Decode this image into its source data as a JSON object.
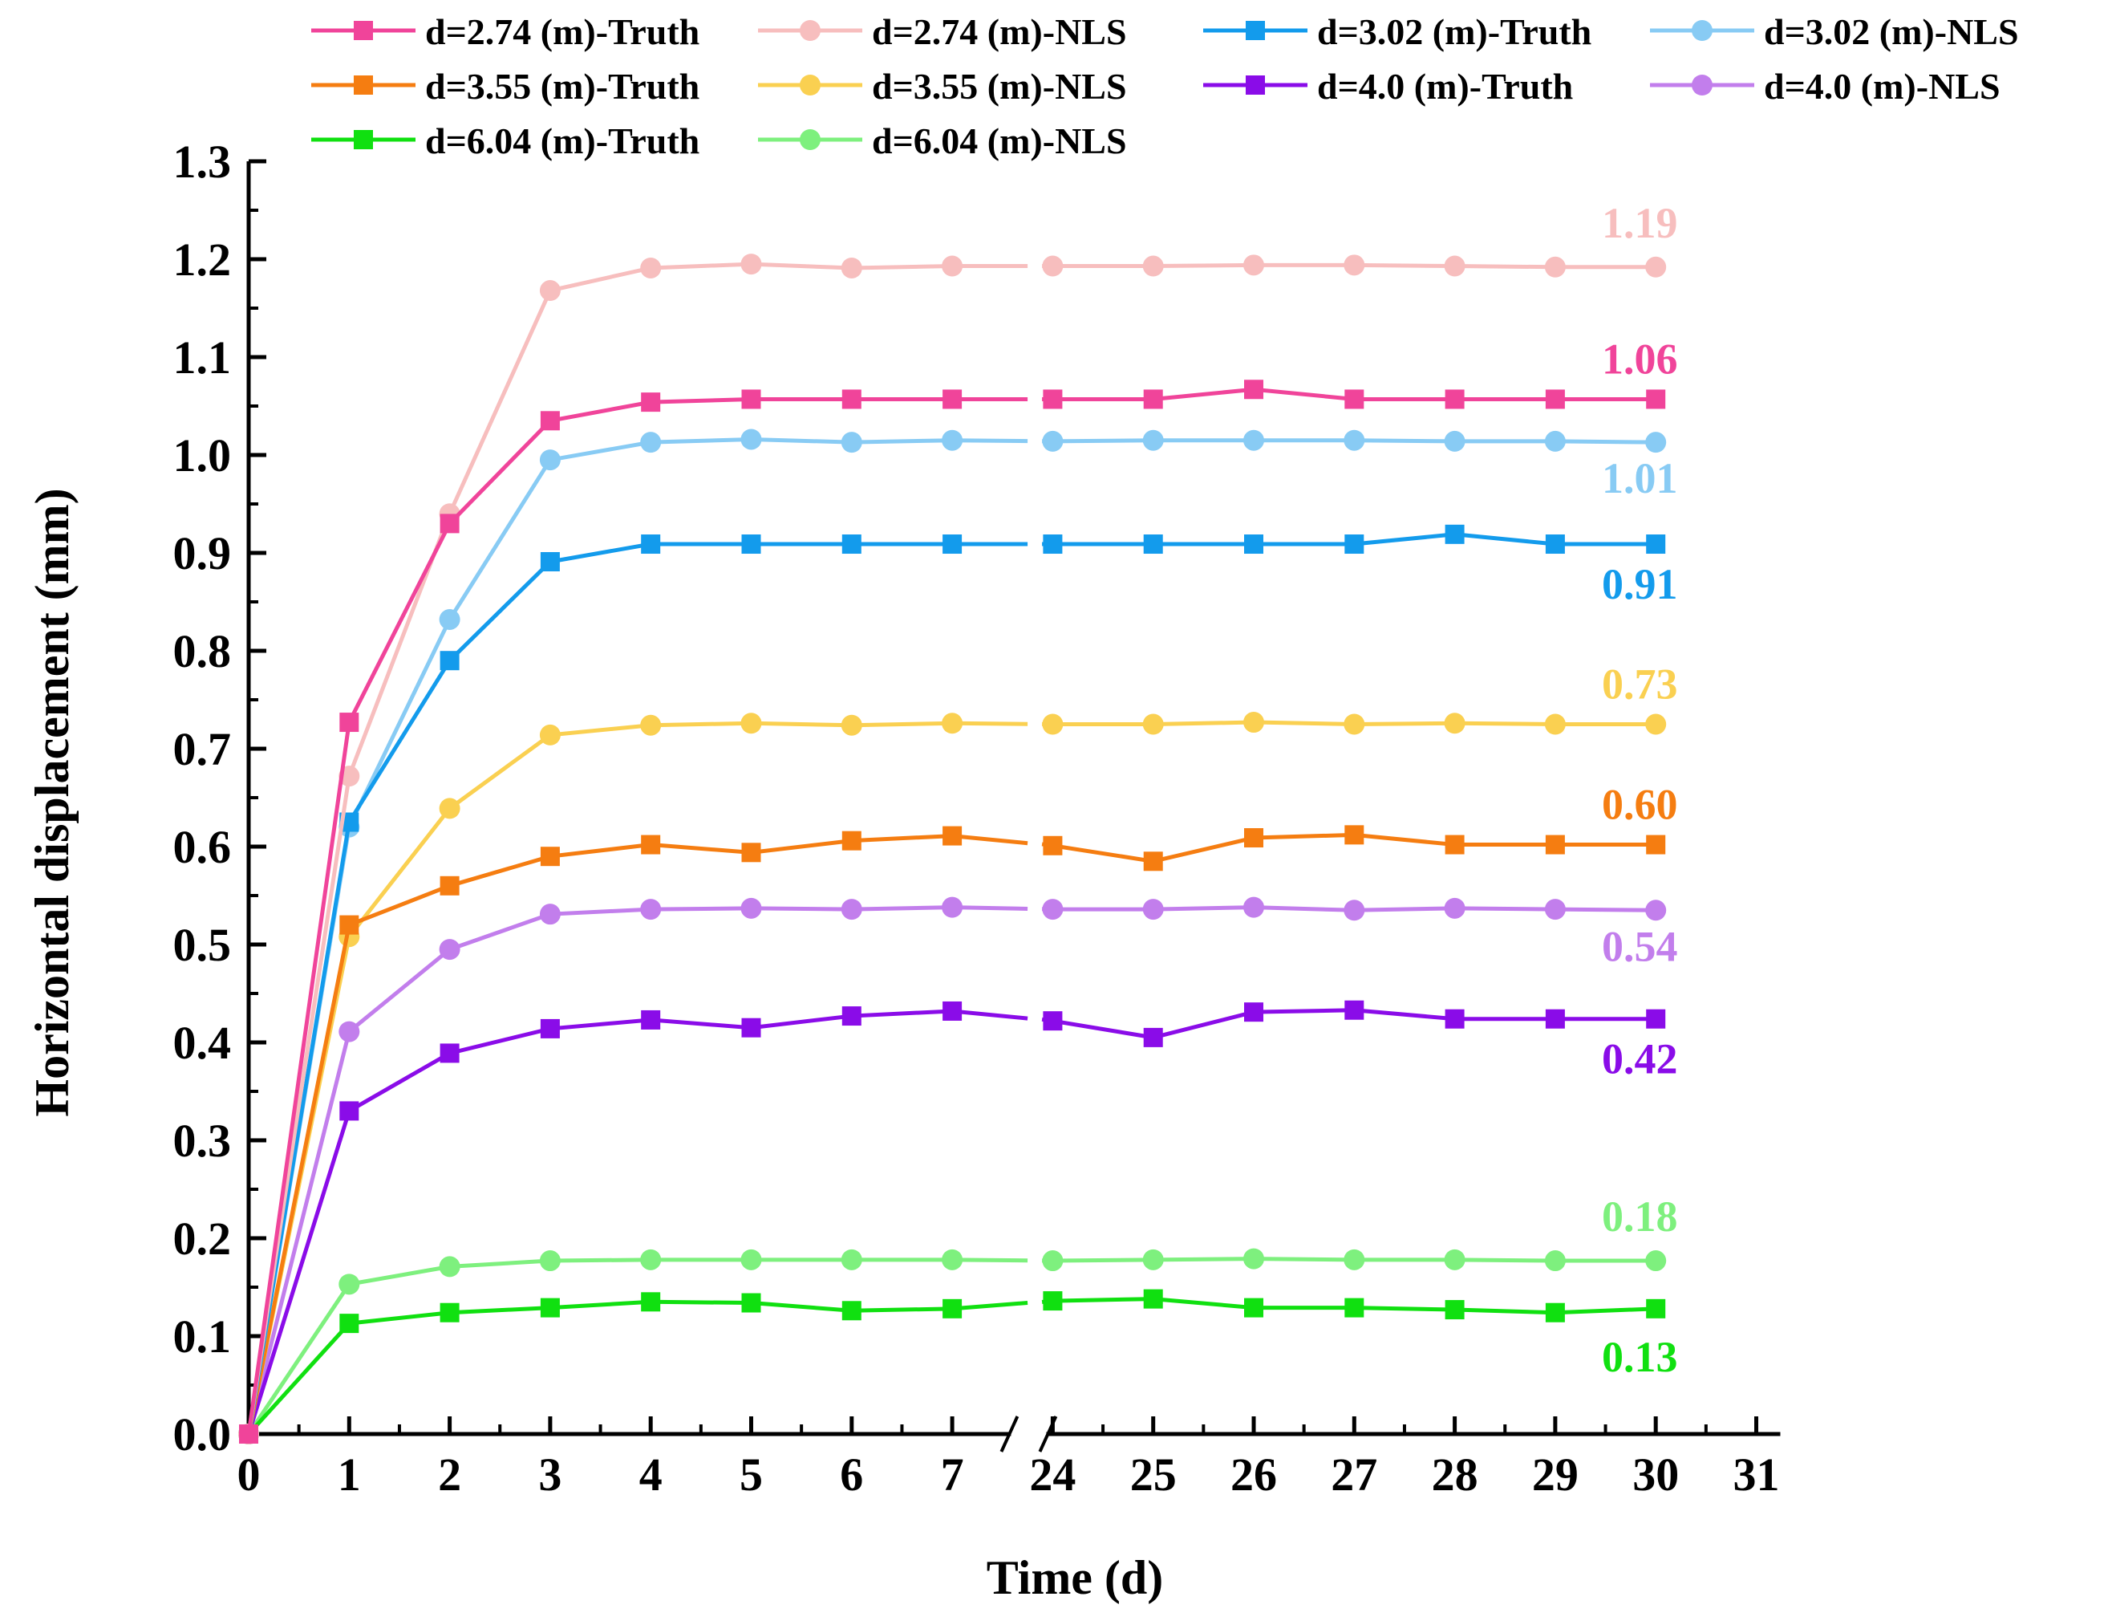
{
  "chart_data": {
    "type": "line",
    "title": "",
    "xlabel": "Time (d)",
    "ylabel": "Horizontal displacement (mm)",
    "ylim": [
      0.0,
      1.3
    ],
    "y_ticks": [
      "0.0",
      "0.1",
      "0.2",
      "0.3",
      "0.4",
      "0.5",
      "0.6",
      "0.7",
      "0.8",
      "0.9",
      "1.0",
      "1.1",
      "1.2",
      "1.3"
    ],
    "x_ticks": [
      "0",
      "1",
      "2",
      "3",
      "4",
      "5",
      "6",
      "7",
      "24",
      "25",
      "26",
      "27",
      "28",
      "29",
      "30",
      "31"
    ],
    "x_break": "between 7 and 24",
    "grid": false,
    "legend_position": "top",
    "series": [
      {
        "name": "d=2.74 (m)-Truth",
        "marker": "square",
        "color": "#F0449A",
        "values": [
          0.0,
          0.727,
          0.93,
          1.035,
          1.054,
          1.057,
          1.057,
          1.057,
          1.057,
          1.057,
          1.067,
          1.057,
          1.057,
          1.057,
          1.057
        ],
        "end_label": "1.06"
      },
      {
        "name": "d=2.74 (m)-NLS",
        "marker": "circle",
        "color": "#F7BEBE",
        "values": [
          0.0,
          0.672,
          0.94,
          1.168,
          1.191,
          1.195,
          1.191,
          1.193,
          1.193,
          1.193,
          1.194,
          1.194,
          1.193,
          1.192,
          1.192
        ],
        "end_label": "1.19"
      },
      {
        "name": "d=3.02 (m)-Truth",
        "marker": "square",
        "color": "#139BEC",
        "values": [
          0.0,
          0.625,
          0.79,
          0.891,
          0.909,
          0.909,
          0.909,
          0.909,
          0.909,
          0.909,
          0.909,
          0.909,
          0.919,
          0.909,
          0.909
        ],
        "end_label": "0.91"
      },
      {
        "name": "d=3.02 (m)-NLS",
        "marker": "circle",
        "color": "#88CBF4",
        "values": [
          0.0,
          0.62,
          0.832,
          0.995,
          1.013,
          1.016,
          1.013,
          1.015,
          1.014,
          1.015,
          1.015,
          1.015,
          1.014,
          1.014,
          1.013
        ],
        "end_label": "1.01"
      },
      {
        "name": "d=3.55 (m)-Truth",
        "marker": "square",
        "color": "#F57D11",
        "values": [
          0.0,
          0.52,
          0.56,
          0.59,
          0.602,
          0.594,
          0.606,
          0.611,
          0.601,
          0.585,
          0.609,
          0.612,
          0.602,
          0.602,
          0.602
        ],
        "end_label": "0.60"
      },
      {
        "name": "d=3.55 (m)-NLS",
        "marker": "circle",
        "color": "#FAD051",
        "values": [
          0.0,
          0.508,
          0.639,
          0.714,
          0.724,
          0.726,
          0.724,
          0.726,
          0.725,
          0.725,
          0.727,
          0.725,
          0.726,
          0.725,
          0.725
        ],
        "end_label": "0.73"
      },
      {
        "name": "d=4.0 (m)-Truth",
        "marker": "square",
        "color": "#8A0CE8",
        "values": [
          0.0,
          0.33,
          0.389,
          0.414,
          0.423,
          0.415,
          0.427,
          0.432,
          0.422,
          0.405,
          0.431,
          0.433,
          0.424,
          0.424,
          0.424
        ],
        "end_label": "0.42"
      },
      {
        "name": "d=4.0 (m)-NLS",
        "marker": "circle",
        "color": "#C27EEC",
        "values": [
          0.0,
          0.411,
          0.495,
          0.531,
          0.536,
          0.537,
          0.536,
          0.538,
          0.536,
          0.536,
          0.538,
          0.535,
          0.537,
          0.536,
          0.535
        ],
        "end_label": "0.54"
      },
      {
        "name": "d=6.04 (m)-Truth",
        "marker": "square",
        "color": "#10E010",
        "values": [
          0.0,
          0.113,
          0.124,
          0.129,
          0.135,
          0.134,
          0.126,
          0.128,
          0.136,
          0.138,
          0.129,
          0.129,
          0.127,
          0.124,
          0.128
        ],
        "end_label": "0.13"
      },
      {
        "name": "d=6.04 (m)-NLS",
        "marker": "circle",
        "color": "#7EF07E",
        "values": [
          0.0,
          0.153,
          0.171,
          0.177,
          0.178,
          0.178,
          0.178,
          0.178,
          0.177,
          0.178,
          0.179,
          0.178,
          0.178,
          0.177,
          0.177
        ],
        "end_label": "0.18"
      }
    ],
    "x": [
      0,
      1,
      2,
      3,
      4,
      5,
      6,
      7,
      24,
      25,
      26,
      27,
      28,
      29,
      30
    ]
  }
}
